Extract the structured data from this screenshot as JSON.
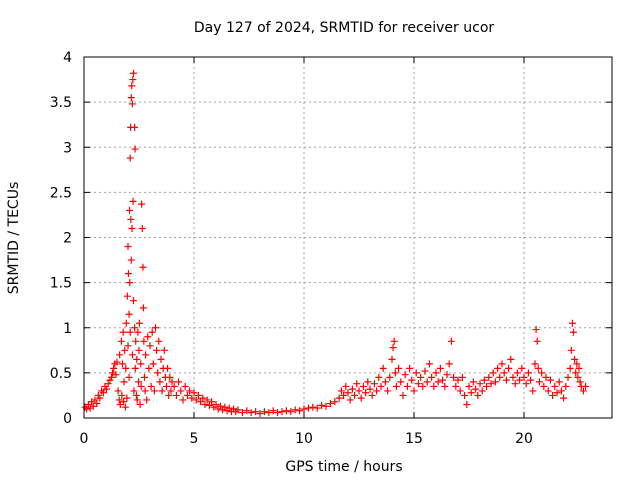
{
  "chart_data": {
    "type": "scatter",
    "title": "Day 127 of 2024, SRMTID for receiver ucor",
    "xlabel": "GPS time / hours",
    "ylabel": "SRMTID / TECUs",
    "xlim": [
      0,
      24
    ],
    "ylim": [
      0,
      4
    ],
    "xticks": [
      0,
      5,
      10,
      15,
      20
    ],
    "yticks": [
      0,
      0.5,
      1,
      1.5,
      2,
      2.5,
      3,
      3.5,
      4
    ],
    "xtick_labels": [
      "0",
      "5",
      "10",
      "15",
      "20"
    ],
    "ytick_labels": [
      "0",
      "0.5",
      "1",
      "1.5",
      "2",
      "2.5",
      "3",
      "3.5",
      "4"
    ],
    "grid": true,
    "marker": "+",
    "series": [
      {
        "name": "SRMTID",
        "color": "#ff0000",
        "points": [
          [
            0.05,
            0.12
          ],
          [
            0.12,
            0.1
          ],
          [
            0.2,
            0.15
          ],
          [
            0.28,
            0.11
          ],
          [
            0.35,
            0.18
          ],
          [
            0.42,
            0.13
          ],
          [
            0.5,
            0.2
          ],
          [
            0.58,
            0.16
          ],
          [
            0.65,
            0.25
          ],
          [
            0.72,
            0.22
          ],
          [
            0.8,
            0.3
          ],
          [
            0.88,
            0.28
          ],
          [
            0.95,
            0.35
          ],
          [
            1.02,
            0.32
          ],
          [
            1.1,
            0.38
          ],
          [
            1.18,
            0.42
          ],
          [
            1.25,
            0.45
          ],
          [
            1.3,
            0.5
          ],
          [
            1.35,
            0.55
          ],
          [
            1.4,
            0.6
          ],
          [
            1.45,
            0.48
          ],
          [
            1.5,
            0.62
          ],
          [
            1.55,
            0.3
          ],
          [
            1.6,
            0.2
          ],
          [
            1.62,
            0.7
          ],
          [
            1.65,
            0.15
          ],
          [
            1.7,
            0.85
          ],
          [
            1.72,
            0.25
          ],
          [
            1.75,
            0.6
          ],
          [
            1.78,
            0.95
          ],
          [
            1.8,
            0.18
          ],
          [
            1.82,
            0.4
          ],
          [
            1.85,
            0.75
          ],
          [
            1.88,
            0.12
          ],
          [
            1.9,
            0.55
          ],
          [
            1.92,
            1.05
          ],
          [
            1.95,
            0.22
          ],
          [
            1.97,
            1.35
          ],
          [
            2.0,
            0.8
          ],
          [
            2.0,
            1.9
          ],
          [
            2.02,
            1.6
          ],
          [
            2.05,
            1.15
          ],
          [
            2.05,
            0.45
          ],
          [
            2.07,
            2.3
          ],
          [
            2.08,
            1.5
          ],
          [
            2.1,
            2.88
          ],
          [
            2.1,
            0.95
          ],
          [
            2.12,
            3.22
          ],
          [
            2.13,
            2.2
          ],
          [
            2.15,
            3.55
          ],
          [
            2.15,
            1.75
          ],
          [
            2.17,
            3.68
          ],
          [
            2.18,
            2.1
          ],
          [
            2.2,
            3.48
          ],
          [
            2.2,
            0.7
          ],
          [
            2.22,
            3.75
          ],
          [
            2.23,
            2.4
          ],
          [
            2.25,
            3.82
          ],
          [
            2.25,
            1.3
          ],
          [
            2.27,
            0.3
          ],
          [
            2.3,
            3.22
          ],
          [
            2.3,
            1.0
          ],
          [
            2.32,
            2.98
          ],
          [
            2.33,
            0.55
          ],
          [
            2.35,
            0.85
          ],
          [
            2.38,
            0.25
          ],
          [
            2.4,
            0.65
          ],
          [
            2.42,
            0.2
          ],
          [
            2.45,
            0.95
          ],
          [
            2.48,
            0.4
          ],
          [
            2.5,
            0.75
          ],
          [
            2.52,
            1.05
          ],
          [
            2.55,
            0.15
          ],
          [
            2.58,
            0.6
          ],
          [
            2.6,
            0.35
          ],
          [
            2.62,
            2.37
          ],
          [
            2.65,
            2.1
          ],
          [
            2.68,
            1.67
          ],
          [
            2.7,
            1.22
          ],
          [
            2.72,
            0.85
          ],
          [
            2.75,
            0.45
          ],
          [
            2.78,
            0.3
          ],
          [
            2.8,
            0.7
          ],
          [
            2.85,
            0.2
          ],
          [
            2.9,
            0.9
          ],
          [
            2.95,
            0.55
          ],
          [
            3.0,
            0.8
          ],
          [
            3.05,
            0.35
          ],
          [
            3.1,
            0.95
          ],
          [
            3.15,
            0.6
          ],
          [
            3.2,
            0.3
          ],
          [
            3.25,
            1.0
          ],
          [
            3.3,
            0.75
          ],
          [
            3.35,
            0.5
          ],
          [
            3.4,
            0.85
          ],
          [
            3.45,
            0.4
          ],
          [
            3.5,
            0.65
          ],
          [
            3.55,
            0.3
          ],
          [
            3.6,
            0.55
          ],
          [
            3.65,
            0.75
          ],
          [
            3.7,
            0.45
          ],
          [
            3.75,
            0.35
          ],
          [
            3.8,
            0.55
          ],
          [
            3.85,
            0.25
          ],
          [
            3.9,
            0.45
          ],
          [
            3.95,
            0.3
          ],
          [
            4.0,
            0.4
          ],
          [
            4.1,
            0.35
          ],
          [
            4.2,
            0.25
          ],
          [
            4.3,
            0.4
          ],
          [
            4.4,
            0.3
          ],
          [
            4.5,
            0.2
          ],
          [
            4.6,
            0.35
          ],
          [
            4.7,
            0.25
          ],
          [
            4.8,
            0.3
          ],
          [
            4.9,
            0.22
          ],
          [
            5.0,
            0.28
          ],
          [
            5.1,
            0.2
          ],
          [
            5.2,
            0.25
          ],
          [
            5.3,
            0.18
          ],
          [
            5.4,
            0.22
          ],
          [
            5.5,
            0.15
          ],
          [
            5.6,
            0.2
          ],
          [
            5.7,
            0.14
          ],
          [
            5.8,
            0.18
          ],
          [
            5.9,
            0.12
          ],
          [
            6.0,
            0.15
          ],
          [
            6.1,
            0.1
          ],
          [
            6.2,
            0.13
          ],
          [
            6.3,
            0.09
          ],
          [
            6.4,
            0.12
          ],
          [
            6.5,
            0.08
          ],
          [
            6.6,
            0.11
          ],
          [
            6.7,
            0.07
          ],
          [
            6.8,
            0.1
          ],
          [
            6.9,
            0.07
          ],
          [
            7.0,
            0.09
          ],
          [
            7.2,
            0.06
          ],
          [
            7.4,
            0.08
          ],
          [
            7.6,
            0.06
          ],
          [
            7.8,
            0.07
          ],
          [
            8.0,
            0.05
          ],
          [
            8.2,
            0.07
          ],
          [
            8.4,
            0.06
          ],
          [
            8.6,
            0.08
          ],
          [
            8.8,
            0.06
          ],
          [
            9.0,
            0.07
          ],
          [
            9.2,
            0.08
          ],
          [
            9.4,
            0.07
          ],
          [
            9.6,
            0.09
          ],
          [
            9.8,
            0.08
          ],
          [
            10.0,
            0.1
          ],
          [
            10.2,
            0.11
          ],
          [
            10.4,
            0.12
          ],
          [
            10.6,
            0.11
          ],
          [
            10.8,
            0.14
          ],
          [
            11.0,
            0.13
          ],
          [
            11.2,
            0.16
          ],
          [
            11.4,
            0.18
          ],
          [
            11.6,
            0.22
          ],
          [
            11.7,
            0.3
          ],
          [
            11.8,
            0.25
          ],
          [
            11.9,
            0.35
          ],
          [
            12.0,
            0.28
          ],
          [
            12.1,
            0.2
          ],
          [
            12.2,
            0.32
          ],
          [
            12.3,
            0.25
          ],
          [
            12.4,
            0.38
          ],
          [
            12.5,
            0.3
          ],
          [
            12.6,
            0.22
          ],
          [
            12.7,
            0.35
          ],
          [
            12.8,
            0.28
          ],
          [
            12.9,
            0.4
          ],
          [
            13.0,
            0.32
          ],
          [
            13.1,
            0.25
          ],
          [
            13.2,
            0.38
          ],
          [
            13.3,
            0.3
          ],
          [
            13.4,
            0.45
          ],
          [
            13.5,
            0.35
          ],
          [
            13.6,
            0.55
          ],
          [
            13.7,
            0.4
          ],
          [
            13.8,
            0.3
          ],
          [
            13.9,
            0.45
          ],
          [
            14.0,
            0.65
          ],
          [
            14.05,
            0.78
          ],
          [
            14.1,
            0.85
          ],
          [
            14.15,
            0.5
          ],
          [
            14.2,
            0.35
          ],
          [
            14.3,
            0.55
          ],
          [
            14.4,
            0.4
          ],
          [
            14.5,
            0.25
          ],
          [
            14.6,
            0.48
          ],
          [
            14.7,
            0.35
          ],
          [
            14.8,
            0.55
          ],
          [
            14.9,
            0.42
          ],
          [
            15.0,
            0.3
          ],
          [
            15.1,
            0.5
          ],
          [
            15.2,
            0.38
          ],
          [
            15.3,
            0.45
          ],
          [
            15.4,
            0.35
          ],
          [
            15.5,
            0.52
          ],
          [
            15.6,
            0.4
          ],
          [
            15.7,
            0.6
          ],
          [
            15.8,
            0.45
          ],
          [
            15.9,
            0.35
          ],
          [
            16.0,
            0.5
          ],
          [
            16.1,
            0.4
          ],
          [
            16.2,
            0.55
          ],
          [
            16.3,
            0.42
          ],
          [
            16.4,
            0.35
          ],
          [
            16.5,
            0.48
          ],
          [
            16.6,
            0.6
          ],
          [
            16.7,
            0.85
          ],
          [
            16.8,
            0.45
          ],
          [
            16.9,
            0.35
          ],
          [
            17.0,
            0.42
          ],
          [
            17.1,
            0.3
          ],
          [
            17.2,
            0.45
          ],
          [
            17.3,
            0.25
          ],
          [
            17.4,
            0.15
          ],
          [
            17.5,
            0.35
          ],
          [
            17.6,
            0.28
          ],
          [
            17.7,
            0.4
          ],
          [
            17.8,
            0.32
          ],
          [
            17.9,
            0.25
          ],
          [
            18.0,
            0.38
          ],
          [
            18.1,
            0.3
          ],
          [
            18.2,
            0.42
          ],
          [
            18.3,
            0.35
          ],
          [
            18.4,
            0.45
          ],
          [
            18.5,
            0.38
          ],
          [
            18.6,
            0.5
          ],
          [
            18.7,
            0.4
          ],
          [
            18.8,
            0.55
          ],
          [
            18.9,
            0.45
          ],
          [
            19.0,
            0.6
          ],
          [
            19.1,
            0.5
          ],
          [
            19.2,
            0.42
          ],
          [
            19.3,
            0.55
          ],
          [
            19.4,
            0.65
          ],
          [
            19.5,
            0.45
          ],
          [
            19.6,
            0.38
          ],
          [
            19.7,
            0.5
          ],
          [
            19.8,
            0.42
          ],
          [
            19.9,
            0.55
          ],
          [
            20.0,
            0.45
          ],
          [
            20.1,
            0.38
          ],
          [
            20.2,
            0.5
          ],
          [
            20.3,
            0.42
          ],
          [
            20.4,
            0.3
          ],
          [
            20.5,
            0.6
          ],
          [
            20.55,
            0.98
          ],
          [
            20.6,
            0.85
          ],
          [
            20.65,
            0.55
          ],
          [
            20.7,
            0.4
          ],
          [
            20.8,
            0.5
          ],
          [
            20.9,
            0.35
          ],
          [
            21.0,
            0.45
          ],
          [
            21.1,
            0.3
          ],
          [
            21.2,
            0.42
          ],
          [
            21.3,
            0.25
          ],
          [
            21.4,
            0.35
          ],
          [
            21.5,
            0.28
          ],
          [
            21.6,
            0.4
          ],
          [
            21.7,
            0.3
          ],
          [
            21.8,
            0.22
          ],
          [
            21.9,
            0.35
          ],
          [
            22.0,
            0.45
          ],
          [
            22.1,
            0.55
          ],
          [
            22.15,
            0.75
          ],
          [
            22.2,
            1.05
          ],
          [
            22.25,
            0.95
          ],
          [
            22.3,
            0.65
          ],
          [
            22.35,
            0.5
          ],
          [
            22.4,
            0.6
          ],
          [
            22.45,
            0.45
          ],
          [
            22.5,
            0.55
          ],
          [
            22.55,
            0.4
          ],
          [
            22.6,
            0.35
          ],
          [
            22.7,
            0.3
          ],
          [
            22.8,
            0.35
          ]
        ]
      }
    ]
  }
}
